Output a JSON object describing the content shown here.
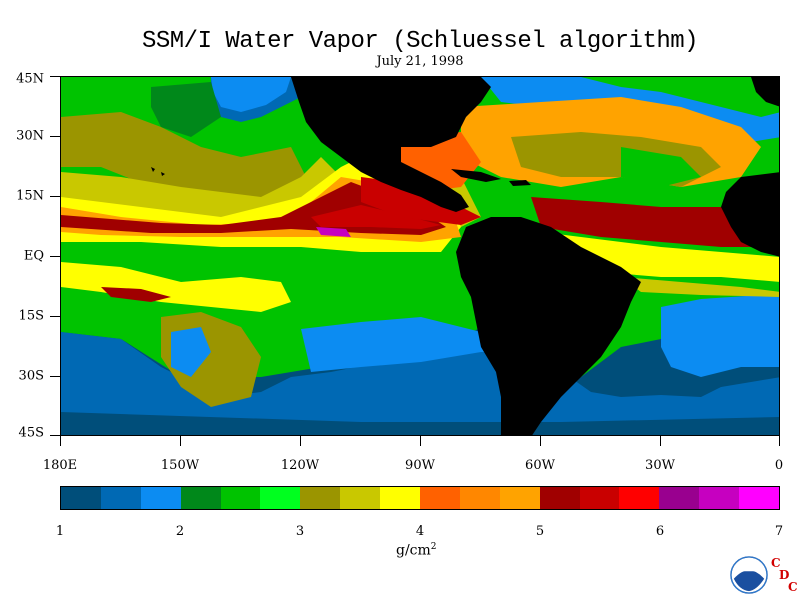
{
  "title": "SSM/I Water Vapor (Schluessel algorithm)",
  "date": "July 21, 1998",
  "lat_labels": [
    "45N",
    "30N",
    "15N",
    "EQ",
    "15S",
    "30S",
    "45S"
  ],
  "lon_labels": [
    "180E",
    "150W",
    "120W",
    "90W",
    "60W",
    "30W",
    "0"
  ],
  "colorbar": {
    "colors": [
      "#004e7a",
      "#0069b4",
      "#0c8cf2",
      "#00881a",
      "#00c300",
      "#00ff1f",
      "#9b9500",
      "#c9c800",
      "#ffff00",
      "#ff6100",
      "#ff8700",
      "#ffa300",
      "#a00000",
      "#c90000",
      "#ff0000",
      "#99008f",
      "#c600c0",
      "#ff00ff"
    ],
    "tick_labels": [
      "1",
      "2",
      "3",
      "4",
      "5",
      "6",
      "7"
    ],
    "range": [
      1,
      7
    ]
  },
  "units": "g/cm",
  "units_exponent": "2",
  "logo": {
    "agency": "NOAA",
    "letters": [
      "C",
      "D",
      "C"
    ]
  },
  "map_colors": {
    "land": "#000000",
    "ocean_default": "#00c300"
  }
}
